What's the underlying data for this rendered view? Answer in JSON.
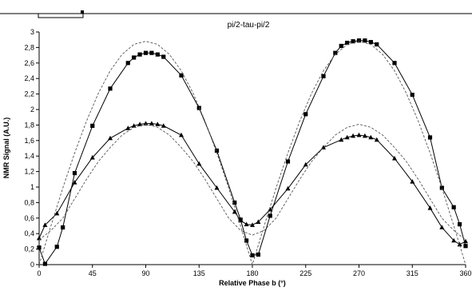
{
  "chart_data": {
    "type": "line",
    "title": "pi/2-tau-pi/2",
    "xlabel": "Relative Phase b (°)",
    "ylabel": "NMR Signal (A.U.)",
    "xlim": [
      0,
      360
    ],
    "ylim": [
      0,
      3
    ],
    "x_ticks": [
      "0",
      "45",
      "90",
      "135",
      "180",
      "225",
      "270",
      "315",
      "360"
    ],
    "y_ticks": [
      "0",
      "0.2",
      "0.4",
      "0.6",
      "0.8",
      "1",
      "1.2",
      "1.4",
      "1.6",
      "1.8",
      "2",
      "2.2",
      "2.4",
      "2.6",
      "2.8",
      "3"
    ],
    "grid": false,
    "legend": "none",
    "series": [
      {
        "marker": "square",
        "line_style": "solid",
        "color": "#000000",
        "x": [
          0,
          5,
          15,
          20,
          30,
          45,
          60,
          75,
          80,
          85,
          90,
          95,
          100,
          105,
          120,
          135,
          150,
          165,
          170,
          175,
          180,
          185,
          195,
          210,
          225,
          240,
          250,
          255,
          260,
          265,
          270,
          275,
          280,
          285,
          300,
          315,
          330,
          340,
          350,
          355,
          360
        ],
        "y": [
          0.22,
          0.01,
          0.23,
          0.48,
          1.18,
          1.79,
          2.27,
          2.6,
          2.67,
          2.71,
          2.73,
          2.73,
          2.71,
          2.68,
          2.44,
          2.02,
          1.47,
          0.8,
          0.58,
          0.31,
          0.12,
          0.13,
          0.63,
          1.33,
          1.94,
          2.43,
          2.73,
          2.82,
          2.86,
          2.88,
          2.89,
          2.89,
          2.87,
          2.84,
          2.6,
          2.19,
          1.64,
          0.99,
          0.74,
          0.52,
          0.24
        ]
      },
      {
        "marker": "triangle",
        "line_style": "solid",
        "color": "#000000",
        "x": [
          0,
          5,
          15,
          30,
          45,
          60,
          75,
          80,
          85,
          90,
          95,
          100,
          105,
          120,
          135,
          150,
          165,
          170,
          175,
          180,
          185,
          195,
          210,
          225,
          240,
          255,
          260,
          265,
          270,
          275,
          280,
          285,
          300,
          315,
          330,
          340,
          350,
          355,
          360
        ],
        "y": [
          0.34,
          0.51,
          0.66,
          1.06,
          1.38,
          1.63,
          1.76,
          1.79,
          1.81,
          1.82,
          1.82,
          1.81,
          1.79,
          1.67,
          1.3,
          0.99,
          0.68,
          0.57,
          0.52,
          0.51,
          0.55,
          0.71,
          0.98,
          1.29,
          1.51,
          1.61,
          1.64,
          1.66,
          1.67,
          1.66,
          1.64,
          1.61,
          1.37,
          1.07,
          0.73,
          0.48,
          0.31,
          0.26,
          0.3
        ]
      },
      {
        "marker": "none",
        "line_style": "dashed",
        "color": "#555555",
        "x": [
          0,
          10,
          20,
          30,
          40,
          50,
          60,
          70,
          80,
          90,
          100,
          110,
          120,
          130,
          140,
          150,
          160,
          170,
          175,
          180,
          185,
          190,
          200,
          210,
          220,
          230,
          240,
          250,
          260,
          270,
          280,
          290,
          300,
          310,
          320,
          330,
          340,
          350,
          360
        ],
        "y": [
          0.0,
          0.5,
          0.99,
          1.44,
          1.85,
          2.21,
          2.5,
          2.71,
          2.84,
          2.88,
          2.84,
          2.71,
          2.5,
          2.21,
          1.85,
          1.44,
          0.99,
          0.5,
          0.25,
          0.0,
          0.25,
          0.5,
          0.99,
          1.44,
          1.85,
          2.21,
          2.5,
          2.71,
          2.84,
          2.88,
          2.84,
          2.71,
          2.5,
          2.21,
          1.85,
          1.44,
          0.99,
          0.5,
          0.0
        ]
      },
      {
        "marker": "none",
        "line_style": "dashed",
        "color": "#555555",
        "x": [
          0,
          10,
          20,
          30,
          40,
          50,
          60,
          70,
          80,
          90,
          100,
          110,
          120,
          130,
          140,
          150,
          160,
          170,
          180,
          190,
          200,
          210,
          220,
          230,
          240,
          250,
          260,
          270,
          280,
          290,
          300,
          310,
          320,
          330,
          340,
          350,
          360
        ],
        "y": [
          0.32,
          0.44,
          0.6,
          0.85,
          1.1,
          1.33,
          1.51,
          1.67,
          1.77,
          1.81,
          1.77,
          1.67,
          1.51,
          1.33,
          1.1,
          0.85,
          0.6,
          0.44,
          0.38,
          0.44,
          0.6,
          0.85,
          1.1,
          1.33,
          1.51,
          1.67,
          1.77,
          1.81,
          1.77,
          1.67,
          1.51,
          1.33,
          1.1,
          0.85,
          0.6,
          0.44,
          0.32
        ]
      }
    ]
  }
}
